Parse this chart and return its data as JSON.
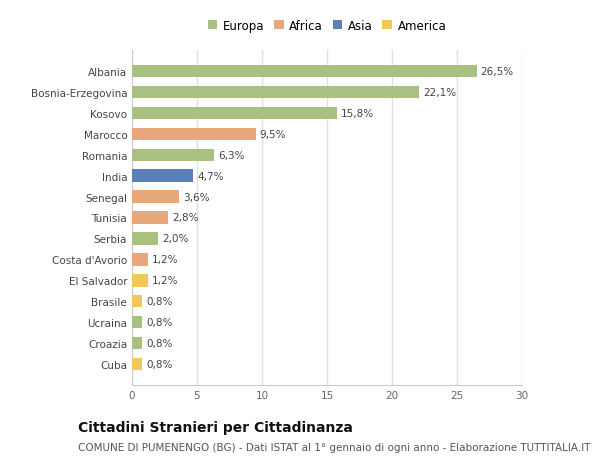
{
  "categories": [
    "Albania",
    "Bosnia-Erzegovina",
    "Kosovo",
    "Marocco",
    "Romania",
    "India",
    "Senegal",
    "Tunisia",
    "Serbia",
    "Costa d'Avorio",
    "El Salvador",
    "Brasile",
    "Ucraina",
    "Croazia",
    "Cuba"
  ],
  "values": [
    26.5,
    22.1,
    15.8,
    9.5,
    6.3,
    4.7,
    3.6,
    2.8,
    2.0,
    1.2,
    1.2,
    0.8,
    0.8,
    0.8,
    0.8
  ],
  "labels": [
    "26,5%",
    "22,1%",
    "15,8%",
    "9,5%",
    "6,3%",
    "4,7%",
    "3,6%",
    "2,8%",
    "2,0%",
    "1,2%",
    "1,2%",
    "0,8%",
    "0,8%",
    "0,8%",
    "0,8%"
  ],
  "continents": [
    "Europa",
    "Europa",
    "Europa",
    "Africa",
    "Europa",
    "Asia",
    "Africa",
    "Africa",
    "Europa",
    "Africa",
    "America",
    "America",
    "Europa",
    "Europa",
    "America"
  ],
  "continent_colors": {
    "Europa": "#a8c080",
    "Africa": "#e8a87c",
    "Asia": "#5b80b5",
    "America": "#f0c855"
  },
  "legend_order": [
    "Europa",
    "Africa",
    "Asia",
    "America"
  ],
  "title": "Cittadini Stranieri per Cittadinanza",
  "subtitle": "COMUNE DI PUMENENGO (BG) - Dati ISTAT al 1° gennaio di ogni anno - Elaborazione TUTTITALIA.IT",
  "xlim": [
    0,
    30
  ],
  "xticks": [
    0,
    5,
    10,
    15,
    20,
    25,
    30
  ],
  "background_color": "#ffffff",
  "plot_bg_color": "#ffffff",
  "grid_color": "#e0e0e0",
  "bar_height": 0.6,
  "title_fontsize": 10,
  "subtitle_fontsize": 7.5,
  "label_fontsize": 7.5,
  "tick_fontsize": 7.5,
  "legend_fontsize": 8.5
}
